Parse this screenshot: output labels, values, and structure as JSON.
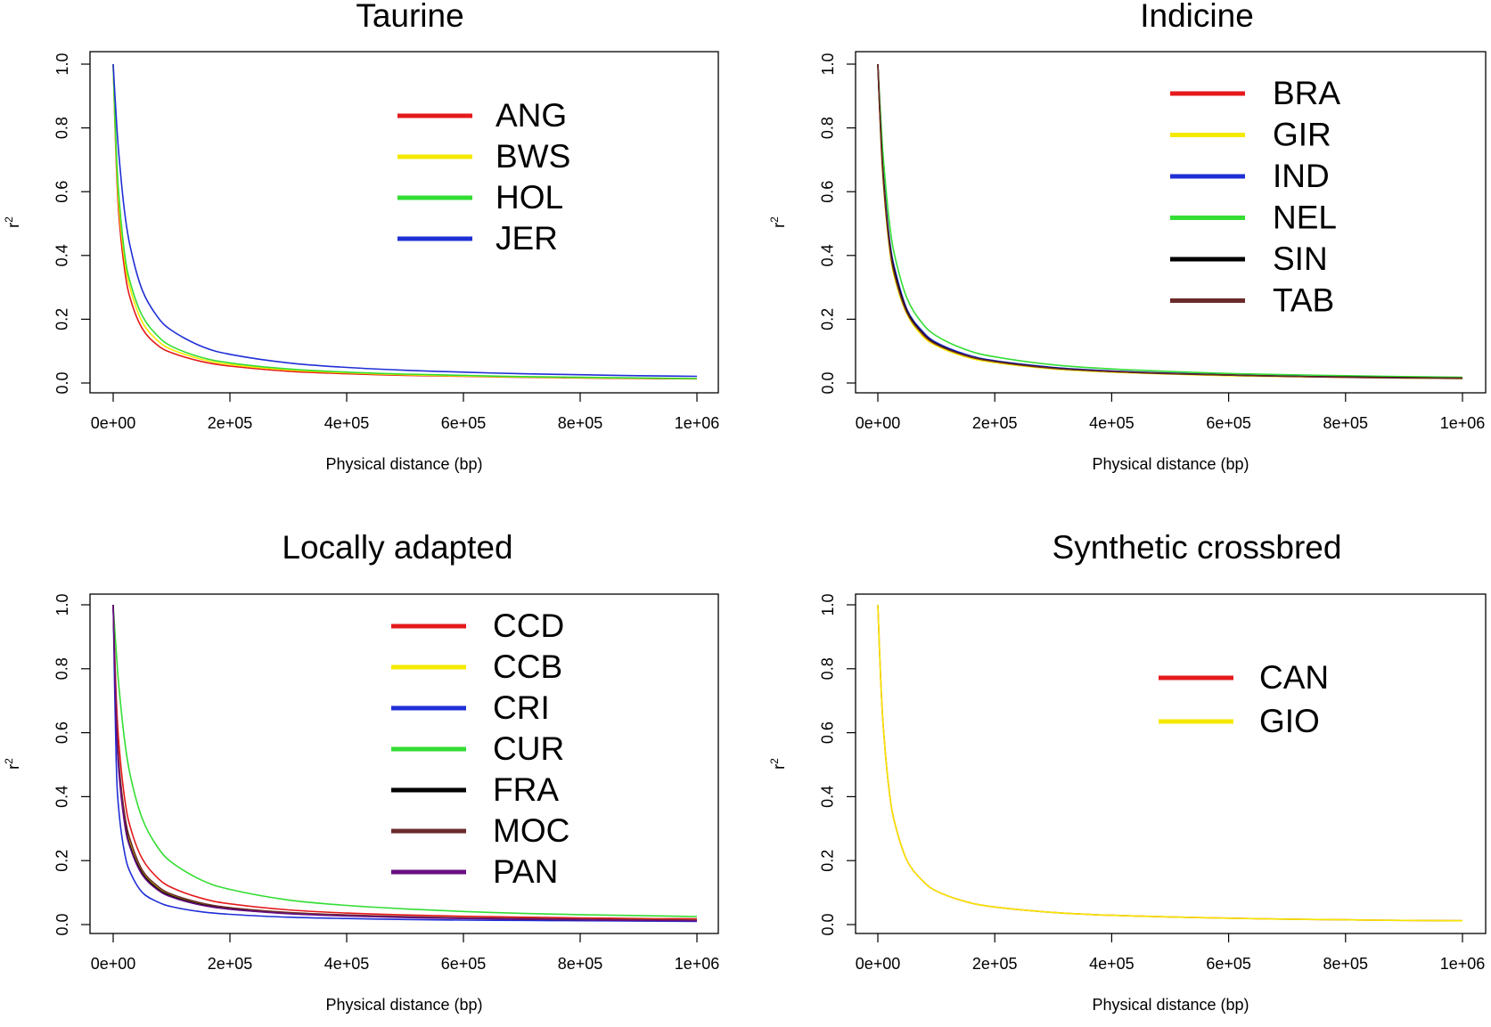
{
  "chart_data": [
    {
      "type": "line",
      "title": "Taurine",
      "xlabel": "Physical distance (bp)",
      "ylabel": "r2",
      "xlim": [
        0,
        1000000
      ],
      "ylim": [
        0,
        1
      ],
      "x_ticks": [
        "0e+00",
        "2e+05",
        "4e+05",
        "6e+05",
        "8e+05",
        "1e+06"
      ],
      "y_ticks": [
        "0.0",
        "0.2",
        "0.4",
        "0.6",
        "0.8",
        "1.0"
      ],
      "legend_position": "top-center",
      "x": [
        0,
        5000,
        10000,
        20000,
        30000,
        50000,
        75000,
        100000,
        150000,
        200000,
        300000,
        400000,
        500000,
        600000,
        700000,
        800000,
        900000,
        1000000
      ],
      "series": [
        {
          "name": "ANG",
          "color": "#e41a1c",
          "values": [
            1.0,
            0.7,
            0.52,
            0.35,
            0.26,
            0.17,
            0.12,
            0.095,
            0.068,
            0.053,
            0.037,
            0.029,
            0.024,
            0.021,
            0.018,
            0.016,
            0.014,
            0.013
          ]
        },
        {
          "name": "BWS",
          "color": "#f5e900",
          "values": [
            1.0,
            0.72,
            0.55,
            0.38,
            0.29,
            0.19,
            0.135,
            0.105,
            0.075,
            0.058,
            0.041,
            0.032,
            0.026,
            0.022,
            0.019,
            0.017,
            0.015,
            0.014
          ]
        },
        {
          "name": "HOL",
          "color": "#33dd33",
          "values": [
            1.0,
            0.74,
            0.58,
            0.4,
            0.31,
            0.21,
            0.15,
            0.115,
            0.081,
            0.063,
            0.044,
            0.034,
            0.028,
            0.024,
            0.02,
            0.018,
            0.016,
            0.014
          ]
        },
        {
          "name": "JER",
          "color": "#1f2fd6",
          "values": [
            1.0,
            0.84,
            0.71,
            0.53,
            0.42,
            0.29,
            0.21,
            0.165,
            0.116,
            0.09,
            0.063,
            0.049,
            0.04,
            0.034,
            0.029,
            0.026,
            0.023,
            0.021
          ]
        }
      ]
    },
    {
      "type": "line",
      "title": "Indicine",
      "xlabel": "Physical distance (bp)",
      "ylabel": "r2",
      "xlim": [
        0,
        1000000
      ],
      "ylim": [
        0,
        1
      ],
      "x_ticks": [
        "0e+00",
        "2e+05",
        "4e+05",
        "6e+05",
        "8e+05",
        "1e+06"
      ],
      "y_ticks": [
        "0.0",
        "0.2",
        "0.4",
        "0.6",
        "0.8",
        "1.0"
      ],
      "legend_position": "top-right",
      "x": [
        0,
        5000,
        10000,
        20000,
        30000,
        50000,
        75000,
        100000,
        150000,
        200000,
        300000,
        400000,
        500000,
        600000,
        700000,
        800000,
        900000,
        1000000
      ],
      "series": [
        {
          "name": "BRA",
          "color": "#e41a1c",
          "values": [
            1.0,
            0.78,
            0.62,
            0.43,
            0.33,
            0.22,
            0.155,
            0.12,
            0.085,
            0.066,
            0.046,
            0.035,
            0.029,
            0.024,
            0.021,
            0.018,
            0.016,
            0.014
          ]
        },
        {
          "name": "GIR",
          "color": "#f5e900",
          "values": [
            1.0,
            0.77,
            0.61,
            0.42,
            0.32,
            0.215,
            0.15,
            0.117,
            0.082,
            0.064,
            0.044,
            0.034,
            0.028,
            0.023,
            0.02,
            0.018,
            0.016,
            0.014
          ]
        },
        {
          "name": "IND",
          "color": "#1f2fd6",
          "values": [
            1.0,
            0.79,
            0.64,
            0.45,
            0.35,
            0.23,
            0.165,
            0.127,
            0.09,
            0.07,
            0.049,
            0.038,
            0.031,
            0.026,
            0.022,
            0.019,
            0.017,
            0.015
          ]
        },
        {
          "name": "NEL",
          "color": "#33dd33",
          "values": [
            1.0,
            0.83,
            0.69,
            0.5,
            0.39,
            0.265,
            0.19,
            0.148,
            0.105,
            0.082,
            0.057,
            0.044,
            0.036,
            0.03,
            0.026,
            0.023,
            0.02,
            0.018
          ]
        },
        {
          "name": "SIN",
          "color": "#000000",
          "values": [
            1.0,
            0.79,
            0.63,
            0.44,
            0.34,
            0.225,
            0.16,
            0.123,
            0.087,
            0.068,
            0.047,
            0.036,
            0.03,
            0.025,
            0.021,
            0.019,
            0.017,
            0.015
          ]
        },
        {
          "name": "TAB",
          "color": "#6b2a2a",
          "values": [
            1.0,
            0.78,
            0.62,
            0.43,
            0.33,
            0.22,
            0.157,
            0.121,
            0.086,
            0.067,
            0.046,
            0.036,
            0.029,
            0.025,
            0.021,
            0.018,
            0.016,
            0.015
          ]
        }
      ]
    },
    {
      "type": "line",
      "title": "Locally adapted",
      "xlabel": "Physical distance (bp)",
      "ylabel": "r2",
      "xlim": [
        0,
        1000000
      ],
      "ylim": [
        0,
        1
      ],
      "x_ticks": [
        "0e+00",
        "2e+05",
        "4e+05",
        "6e+05",
        "8e+05",
        "1e+06"
      ],
      "y_ticks": [
        "0.0",
        "0.2",
        "0.4",
        "0.6",
        "0.8",
        "1.0"
      ],
      "legend_position": "top-center",
      "x": [
        0,
        5000,
        10000,
        20000,
        30000,
        50000,
        75000,
        100000,
        150000,
        200000,
        300000,
        400000,
        500000,
        600000,
        700000,
        800000,
        900000,
        1000000
      ],
      "series": [
        {
          "name": "CCD",
          "color": "#e41a1c",
          "values": [
            1.0,
            0.72,
            0.56,
            0.39,
            0.3,
            0.205,
            0.148,
            0.116,
            0.083,
            0.065,
            0.046,
            0.036,
            0.03,
            0.026,
            0.023,
            0.021,
            0.019,
            0.018
          ]
        },
        {
          "name": "CCB",
          "color": "#f5e900",
          "values": [
            1.0,
            0.66,
            0.49,
            0.33,
            0.25,
            0.165,
            0.118,
            0.092,
            0.066,
            0.052,
            0.037,
            0.029,
            0.024,
            0.021,
            0.018,
            0.016,
            0.015,
            0.014
          ]
        },
        {
          "name": "CRI",
          "color": "#1f2fd6",
          "values": [
            1.0,
            0.52,
            0.35,
            0.22,
            0.16,
            0.1,
            0.072,
            0.056,
            0.04,
            0.032,
            0.023,
            0.019,
            0.016,
            0.014,
            0.013,
            0.012,
            0.011,
            0.01
          ]
        },
        {
          "name": "CUR",
          "color": "#33dd33",
          "values": [
            1.0,
            0.86,
            0.74,
            0.57,
            0.46,
            0.33,
            0.245,
            0.195,
            0.14,
            0.11,
            0.077,
            0.06,
            0.049,
            0.041,
            0.035,
            0.031,
            0.028,
            0.025
          ]
        },
        {
          "name": "FRA",
          "color": "#000000",
          "values": [
            1.0,
            0.65,
            0.48,
            0.32,
            0.24,
            0.16,
            0.114,
            0.089,
            0.063,
            0.05,
            0.035,
            0.028,
            0.023,
            0.02,
            0.017,
            0.015,
            0.014,
            0.013
          ]
        },
        {
          "name": "MOC",
          "color": "#6b2a2a",
          "values": [
            1.0,
            0.67,
            0.5,
            0.34,
            0.26,
            0.17,
            0.122,
            0.095,
            0.068,
            0.053,
            0.038,
            0.03,
            0.025,
            0.021,
            0.019,
            0.017,
            0.015,
            0.014
          ]
        },
        {
          "name": "PAN",
          "color": "#6a0d83",
          "values": [
            1.0,
            0.64,
            0.47,
            0.31,
            0.235,
            0.155,
            0.11,
            0.086,
            0.061,
            0.048,
            0.034,
            0.027,
            0.022,
            0.019,
            0.017,
            0.015,
            0.013,
            0.012
          ]
        }
      ]
    },
    {
      "type": "line",
      "title": "Synthetic crossbred",
      "xlabel": "Physical distance (bp)",
      "ylabel": "r2",
      "xlim": [
        0,
        1000000
      ],
      "ylim": [
        0,
        1
      ],
      "x_ticks": [
        "0e+00",
        "2e+05",
        "4e+05",
        "6e+05",
        "8e+05",
        "1e+06"
      ],
      "y_ticks": [
        "0.0",
        "0.2",
        "0.4",
        "0.6",
        "0.8",
        "1.0"
      ],
      "legend_position": "top-right",
      "x": [
        0,
        5000,
        10000,
        20000,
        30000,
        50000,
        75000,
        100000,
        150000,
        200000,
        300000,
        400000,
        500000,
        600000,
        700000,
        800000,
        900000,
        1000000
      ],
      "series": [
        {
          "name": "CAN",
          "color": "#e41a1c",
          "values": [
            1.0,
            0.76,
            0.6,
            0.41,
            0.31,
            0.2,
            0.14,
            0.105,
            0.072,
            0.055,
            0.038,
            0.029,
            0.024,
            0.02,
            0.017,
            0.015,
            0.013,
            0.012
          ]
        },
        {
          "name": "GIO",
          "color": "#f5e900",
          "values": [
            1.0,
            0.76,
            0.6,
            0.41,
            0.31,
            0.2,
            0.14,
            0.105,
            0.072,
            0.055,
            0.038,
            0.029,
            0.024,
            0.02,
            0.017,
            0.015,
            0.013,
            0.012
          ]
        }
      ]
    }
  ]
}
